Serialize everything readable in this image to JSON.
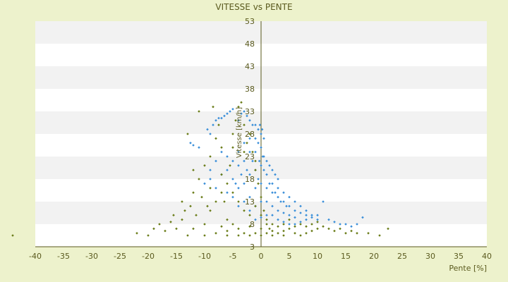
{
  "chart_data": {
    "type": "scatter",
    "title": "VITESSE vs PENTE",
    "xlabel": "Pente [%]",
    "ylabel": "Vitesse [km/h]",
    "xlim": [
      -40,
      40
    ],
    "ylim": [
      3,
      53
    ],
    "x_ticks": [
      -40,
      -35,
      -30,
      -25,
      -20,
      -15,
      -10,
      -5,
      0,
      5,
      10,
      15,
      20,
      25,
      30,
      35,
      40
    ],
    "y_ticks": [
      3,
      8,
      13,
      18,
      23,
      28,
      33,
      38,
      43,
      48,
      53
    ],
    "grid": "alternating horizontal bands",
    "background_color": "#edf2cc",
    "band_colors": [
      "#ffffff",
      "#f2f2f2"
    ],
    "series": [
      {
        "color": "#3b8fd9",
        "marker": "diamond",
        "points": [
          [
            -12.5,
            26
          ],
          [
            -12,
            25.5
          ],
          [
            -11,
            25
          ],
          [
            -9.5,
            29
          ],
          [
            -9,
            28
          ],
          [
            -8.5,
            30
          ],
          [
            -8,
            31
          ],
          [
            -7.5,
            31.5
          ],
          [
            -7,
            31.5
          ],
          [
            -6.5,
            32
          ],
          [
            -6,
            32.5
          ],
          [
            -5.5,
            33
          ],
          [
            -5,
            33.5
          ],
          [
            -4,
            31
          ],
          [
            -3.5,
            32.5
          ],
          [
            -3,
            33
          ],
          [
            -2.5,
            32
          ],
          [
            -2,
            31
          ],
          [
            -1.5,
            30
          ],
          [
            -1,
            30
          ],
          [
            -0.5,
            29
          ],
          [
            0,
            28
          ],
          [
            -9,
            20
          ],
          [
            -8,
            22
          ],
          [
            -7,
            24
          ],
          [
            -6,
            23
          ],
          [
            -5,
            22
          ],
          [
            -4,
            24
          ],
          [
            -3,
            26
          ],
          [
            -2,
            27
          ],
          [
            -1,
            27
          ],
          [
            -10,
            17
          ],
          [
            -9,
            18
          ],
          [
            -8,
            16
          ],
          [
            -7,
            19
          ],
          [
            -6,
            20
          ],
          [
            -5,
            18
          ],
          [
            -4,
            21
          ],
          [
            -3,
            22
          ],
          [
            -2,
            24
          ],
          [
            -1,
            24
          ],
          [
            0,
            25
          ],
          [
            0.5,
            23
          ],
          [
            1,
            22
          ],
          [
            1.5,
            21
          ],
          [
            2,
            20
          ],
          [
            2.5,
            19
          ],
          [
            3,
            18
          ],
          [
            -6,
            15
          ],
          [
            -5,
            14
          ],
          [
            -4,
            16
          ],
          [
            -3,
            17
          ],
          [
            -2,
            19
          ],
          [
            -1,
            20
          ],
          [
            0,
            21
          ],
          [
            1,
            19
          ],
          [
            2,
            17
          ],
          [
            3,
            16
          ],
          [
            4,
            15
          ],
          [
            5,
            14
          ],
          [
            6,
            13
          ],
          [
            7,
            12
          ],
          [
            8,
            11
          ],
          [
            9,
            10
          ],
          [
            10,
            10
          ],
          [
            -4,
            12
          ],
          [
            -3,
            13
          ],
          [
            -2,
            14
          ],
          [
            -1,
            16
          ],
          [
            0,
            17
          ],
          [
            1,
            16
          ],
          [
            2,
            15
          ],
          [
            3,
            14
          ],
          [
            4,
            13
          ],
          [
            5,
            12
          ],
          [
            6,
            11
          ],
          [
            7,
            10.5
          ],
          [
            8,
            10
          ],
          [
            9,
            9.5
          ],
          [
            10,
            9
          ],
          [
            11,
            13
          ],
          [
            12,
            9
          ],
          [
            13,
            8.5
          ],
          [
            14,
            8
          ],
          [
            15,
            8
          ],
          [
            16,
            7.5
          ],
          [
            17,
            8
          ],
          [
            18,
            9.5
          ],
          [
            -2,
            11
          ],
          [
            -1,
            12
          ],
          [
            0,
            13
          ],
          [
            1,
            13
          ],
          [
            2,
            12
          ],
          [
            3,
            11
          ],
          [
            4,
            10.5
          ],
          [
            5,
            10
          ],
          [
            6,
            9.5
          ],
          [
            -1,
            9
          ],
          [
            0,
            9.5
          ],
          [
            1,
            10
          ],
          [
            2,
            10
          ],
          [
            3,
            9
          ],
          [
            4,
            8.5
          ],
          [
            5,
            8
          ],
          [
            6,
            8
          ],
          [
            7,
            8.5
          ],
          [
            8,
            9
          ],
          [
            -0.5,
            18
          ],
          [
            0.5,
            20
          ],
          [
            -1.5,
            22
          ],
          [
            1.5,
            17
          ],
          [
            2.5,
            15
          ],
          [
            3.5,
            13
          ],
          [
            4.5,
            12
          ],
          [
            -2.5,
            20
          ],
          [
            -3.5,
            19
          ],
          [
            -4.5,
            17
          ],
          [
            -0.5,
            26
          ],
          [
            0.5,
            27
          ],
          [
            0.2,
            29
          ],
          [
            -0.2,
            30
          ],
          [
            0.3,
            23
          ],
          [
            -0.3,
            22
          ]
        ]
      },
      {
        "color": "#6b7d1a",
        "marker": "diamond",
        "points": [
          [
            -44,
            5.5
          ],
          [
            -22,
            6
          ],
          [
            -20,
            5.5
          ],
          [
            -18,
            8
          ],
          [
            -16,
            8.5
          ],
          [
            -15.5,
            10
          ],
          [
            -15,
            7
          ],
          [
            -14,
            9
          ],
          [
            -13.5,
            11
          ],
          [
            -13,
            28
          ],
          [
            -12.5,
            12
          ],
          [
            -12,
            7
          ],
          [
            -11.5,
            10
          ],
          [
            -11,
            33
          ],
          [
            -10.5,
            14
          ],
          [
            -10,
            8
          ],
          [
            -9.5,
            12
          ],
          [
            -9,
            16
          ],
          [
            -8.5,
            34
          ],
          [
            -8,
            27
          ],
          [
            -7.5,
            30
          ],
          [
            -7,
            19
          ],
          [
            -6.5,
            13
          ],
          [
            -6,
            9
          ],
          [
            -5.5,
            21
          ],
          [
            -5,
            25
          ],
          [
            -4.5,
            31
          ],
          [
            -4,
            34
          ],
          [
            -3.5,
            35
          ],
          [
            -3,
            30
          ],
          [
            -2.5,
            26
          ],
          [
            -2,
            28
          ],
          [
            -1.5,
            24
          ],
          [
            -1,
            20
          ],
          [
            -0.5,
            17
          ],
          [
            0,
            14
          ],
          [
            0.5,
            11
          ],
          [
            1,
            9
          ],
          [
            1.5,
            7
          ],
          [
            2,
            6.5
          ],
          [
            3,
            6
          ],
          [
            4,
            6.5
          ],
          [
            5,
            7
          ],
          [
            6,
            6
          ],
          [
            7,
            5.5
          ],
          [
            8,
            6
          ],
          [
            9,
            6.5
          ],
          [
            10,
            7
          ],
          [
            11,
            7.5
          ],
          [
            12,
            7
          ],
          [
            13,
            6.5
          ],
          [
            14,
            7
          ],
          [
            15,
            6
          ],
          [
            16,
            6.5
          ],
          [
            17,
            6
          ],
          [
            19,
            6
          ],
          [
            21,
            5.5
          ],
          [
            22.5,
            7
          ],
          [
            -8,
            6
          ],
          [
            -7,
            7.5
          ],
          [
            -6,
            6.5
          ],
          [
            -5,
            8
          ],
          [
            -4,
            7
          ],
          [
            -3,
            6
          ],
          [
            -2,
            7.5
          ],
          [
            -1,
            6
          ],
          [
            0,
            7
          ],
          [
            1,
            6
          ],
          [
            2,
            8
          ],
          [
            3,
            7.5
          ],
          [
            4,
            8
          ],
          [
            5,
            9
          ],
          [
            6,
            7.5
          ],
          [
            7,
            8
          ],
          [
            8,
            7.5
          ],
          [
            9,
            8
          ],
          [
            10,
            8.5
          ],
          [
            -9,
            11
          ],
          [
            -8,
            13
          ],
          [
            -7,
            15
          ],
          [
            -6,
            17
          ],
          [
            -5,
            15
          ],
          [
            -4,
            13
          ],
          [
            -3,
            11
          ],
          [
            -2,
            10
          ],
          [
            -1,
            12
          ],
          [
            0,
            10
          ],
          [
            1,
            8
          ],
          [
            -10,
            21
          ],
          [
            -9,
            23
          ],
          [
            -7,
            25
          ],
          [
            -5,
            28
          ],
          [
            -3,
            24
          ],
          [
            -1,
            22
          ],
          [
            -12,
            15
          ],
          [
            -11,
            18
          ],
          [
            -14,
            13
          ],
          [
            -12,
            20
          ],
          [
            -6,
            5.5
          ],
          [
            -4,
            5.5
          ],
          [
            -2,
            5.5
          ],
          [
            0,
            5.5
          ],
          [
            2,
            5.5
          ],
          [
            4,
            5.5
          ],
          [
            -10,
            5.5
          ],
          [
            -13,
            5.5
          ],
          [
            -17,
            6.5
          ],
          [
            -19,
            7
          ]
        ]
      }
    ]
  }
}
